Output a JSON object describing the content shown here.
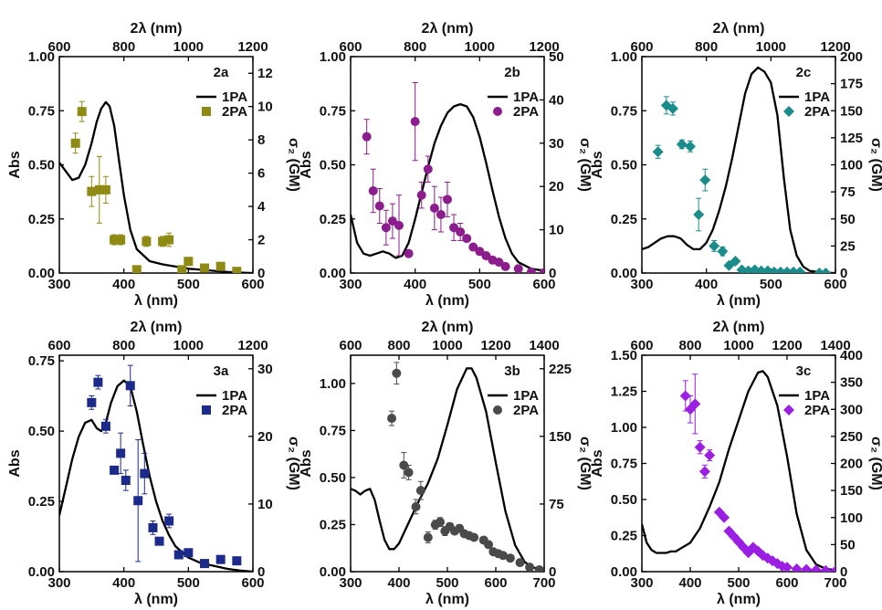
{
  "chart_data": [
    {
      "type": "line+scatter",
      "panel": "2a",
      "xlabel": "λ (nm)",
      "top_xlabel": "2λ (nm)",
      "ylabel": "Abs",
      "y2label": "σ₂ (GM)",
      "xlim": [
        300,
        600
      ],
      "ylim": [
        0,
        1.0
      ],
      "y2lim": [
        0,
        13
      ],
      "xticks": [
        300,
        400,
        500,
        600
      ],
      "top_ticks": [
        600,
        800,
        1000,
        1200
      ],
      "yticks": [
        "0.00",
        "0.25",
        "0.50",
        "0.75",
        "1.00"
      ],
      "ytick_values": [
        0,
        0.25,
        0.5,
        0.75,
        1.0
      ],
      "y2ticks": [
        0,
        2,
        4,
        6,
        8,
        10,
        12
      ],
      "legend": {
        "line": "1PA",
        "marker": "2PA",
        "position": "top-right"
      },
      "color": "#8f8a14",
      "marker": "square",
      "abs": {
        "x": [
          300,
          310,
          320,
          330,
          340,
          350,
          358,
          365,
          372,
          378,
          385,
          392,
          400,
          410,
          420,
          440,
          460,
          480,
          500,
          520,
          540,
          560,
          580,
          600
        ],
        "y": [
          0.51,
          0.47,
          0.43,
          0.44,
          0.5,
          0.6,
          0.7,
          0.76,
          0.79,
          0.77,
          0.68,
          0.53,
          0.36,
          0.2,
          0.11,
          0.055,
          0.04,
          0.03,
          0.02,
          0.015,
          0.01,
          0.005,
          0.002,
          0
        ]
      },
      "twopa": {
        "x": [
          325,
          335,
          350,
          362,
          372,
          385,
          395,
          420,
          435,
          460,
          470,
          490,
          500,
          525,
          550,
          575
        ],
        "y": [
          7.8,
          9.7,
          4.9,
          5.0,
          5.0,
          2.0,
          2.0,
          0.2,
          1.9,
          1.9,
          2.0,
          0.2,
          0.7,
          0.3,
          0.4,
          0.1
        ],
        "err": [
          0.6,
          0.6,
          0.9,
          2.0,
          0.8,
          0.3,
          0.3,
          0,
          0.3,
          0.3,
          0.4,
          0,
          0,
          0,
          0,
          0
        ]
      }
    },
    {
      "type": "line+scatter",
      "panel": "2b",
      "xlabel": "λ (nm)",
      "top_xlabel": "2λ (nm)",
      "ylabel": "Abs",
      "y2label": "σ₂ (GM)",
      "xlim": [
        300,
        600
      ],
      "ylim": [
        0,
        1.0
      ],
      "y2lim": [
        0,
        50
      ],
      "xticks": [
        300,
        400,
        500,
        600
      ],
      "top_ticks": [
        600,
        800,
        1000,
        1200
      ],
      "yticks": [
        "0.00",
        "0.25",
        "0.50",
        "0.75",
        "1.00"
      ],
      "ytick_values": [
        0,
        0.25,
        0.5,
        0.75,
        1.0
      ],
      "y2ticks": [
        0,
        10,
        20,
        30,
        40,
        50
      ],
      "legend": {
        "line": "1PA",
        "marker": "2PA",
        "position": "top-right"
      },
      "color": "#8b1d8c",
      "marker": "circle",
      "abs": {
        "x": [
          300,
          310,
          320,
          330,
          340,
          350,
          360,
          370,
          380,
          390,
          400,
          410,
          420,
          430,
          440,
          450,
          460,
          470,
          480,
          490,
          500,
          510,
          520,
          530,
          540,
          550,
          560,
          580,
          600
        ],
        "y": [
          0.27,
          0.14,
          0.09,
          0.08,
          0.09,
          0.1,
          0.09,
          0.07,
          0.08,
          0.14,
          0.25,
          0.37,
          0.49,
          0.6,
          0.68,
          0.74,
          0.77,
          0.78,
          0.77,
          0.72,
          0.63,
          0.51,
          0.38,
          0.26,
          0.16,
          0.09,
          0.05,
          0.02,
          0.01
        ]
      },
      "twopa": {
        "x": [
          325,
          335,
          345,
          355,
          365,
          375,
          390,
          400,
          410,
          420,
          430,
          440,
          450,
          460,
          470,
          480,
          490,
          500,
          510,
          520,
          530,
          540,
          560,
          580,
          600
        ],
        "y": [
          31.5,
          19.0,
          15.5,
          10.5,
          12.0,
          11.0,
          4.5,
          35.0,
          18.0,
          24.0,
          15.0,
          13.5,
          17.0,
          10.5,
          9.5,
          8.0,
          6.0,
          5.0,
          4.0,
          3.0,
          2.5,
          1.5,
          1.0,
          0.2,
          0.1
        ],
        "err": [
          4,
          5,
          4,
          4,
          4,
          7,
          0,
          9,
          3,
          3,
          5,
          4,
          4,
          3,
          2,
          0,
          0,
          0,
          0,
          0,
          0,
          0,
          0,
          0,
          0
        ]
      }
    },
    {
      "type": "line+scatter",
      "panel": "2c",
      "xlabel": "λ (nm)",
      "top_xlabel": "2λ (nm)",
      "ylabel": "Abs",
      "y2label": "σ₂ (GM)",
      "xlim": [
        300,
        600
      ],
      "ylim": [
        0,
        1.0
      ],
      "y2lim": [
        0,
        200
      ],
      "xticks": [
        300,
        400,
        500,
        600
      ],
      "top_ticks": [
        600,
        800,
        1000,
        1200
      ],
      "yticks": [
        "0.00",
        "0.25",
        "0.50",
        "0.75",
        "1.00"
      ],
      "ytick_values": [
        0,
        0.25,
        0.5,
        0.75,
        1.0
      ],
      "y2ticks": [
        0,
        25,
        50,
        75,
        100,
        125,
        150,
        175,
        200
      ],
      "legend": {
        "line": "1PA",
        "marker": "2PA",
        "position": "top-right"
      },
      "color": "#1a8c8c",
      "marker": "diamond",
      "abs": {
        "x": [
          300,
          310,
          320,
          330,
          340,
          350,
          360,
          370,
          380,
          390,
          400,
          410,
          420,
          430,
          440,
          450,
          460,
          470,
          480,
          490,
          500,
          510,
          520,
          530,
          540,
          550,
          560,
          580,
          600
        ],
        "y": [
          0.11,
          0.12,
          0.14,
          0.16,
          0.17,
          0.17,
          0.16,
          0.13,
          0.11,
          0.11,
          0.14,
          0.2,
          0.29,
          0.4,
          0.53,
          0.68,
          0.83,
          0.92,
          0.95,
          0.93,
          0.88,
          0.73,
          0.44,
          0.2,
          0.08,
          0.03,
          0.01,
          0.002,
          0
        ]
      },
      "twopa": {
        "x": [
          325,
          338,
          348,
          362,
          375,
          388,
          398,
          412,
          425,
          435,
          445,
          455,
          465,
          475,
          485,
          495,
          505,
          515,
          525,
          535,
          545,
          575,
          585
        ],
        "y": [
          112,
          155,
          152,
          119,
          117,
          54,
          86,
          25,
          20,
          7,
          11,
          3,
          2,
          3,
          2,
          2,
          1,
          1,
          1,
          1,
          1,
          0,
          0
        ],
        "err": [
          6,
          8,
          6,
          4,
          5,
          15,
          10,
          5,
          4,
          2,
          2,
          0,
          0,
          0,
          0,
          0,
          0,
          0,
          0,
          0,
          0,
          0,
          0
        ]
      }
    },
    {
      "type": "line+scatter",
      "panel": "3a",
      "xlabel": "λ (nm)",
      "top_xlabel": "2λ (nm)",
      "ylabel": "Abs",
      "y2label": "σ₂ (GM)",
      "xlim": [
        300,
        600
      ],
      "ylim": [
        0,
        0.77
      ],
      "y2lim": [
        0,
        32
      ],
      "xticks": [
        300,
        400,
        500,
        600
      ],
      "top_ticks": [
        600,
        800,
        1000,
        1200
      ],
      "yticks": [
        "0.00",
        "0.25",
        "0.50",
        "0.75"
      ],
      "ytick_values": [
        0,
        0.25,
        0.5,
        0.75
      ],
      "y2ticks": [
        0,
        10,
        20,
        30
      ],
      "legend": {
        "line": "1PA",
        "marker": "2PA",
        "position": "top-right"
      },
      "color": "#1c2a8c",
      "marker": "square",
      "abs": {
        "x": [
          300,
          310,
          320,
          330,
          340,
          350,
          358,
          365,
          372,
          380,
          390,
          400,
          410,
          420,
          430,
          440,
          450,
          460,
          470,
          480,
          490,
          500,
          520,
          540,
          560,
          580,
          600
        ],
        "y": [
          0.2,
          0.3,
          0.4,
          0.48,
          0.53,
          0.54,
          0.51,
          0.5,
          0.53,
          0.6,
          0.66,
          0.68,
          0.66,
          0.57,
          0.45,
          0.34,
          0.25,
          0.18,
          0.13,
          0.09,
          0.07,
          0.05,
          0.03,
          0.02,
          0.01,
          0.004,
          0
        ]
      },
      "twopa": {
        "x": [
          350,
          360,
          372,
          385,
          395,
          403,
          410,
          422,
          432,
          445,
          455,
          470,
          485,
          500,
          525,
          550,
          575
        ],
        "y": [
          25,
          28,
          21.5,
          15,
          17.5,
          13.5,
          27.5,
          10.5,
          14.5,
          6.5,
          4.5,
          7.5,
          2.5,
          2.8,
          1.2,
          1.8,
          1.6
        ],
        "err": [
          1.0,
          1.0,
          1.0,
          0.5,
          3.0,
          1.5,
          3.0,
          9.0,
          3.0,
          1.0,
          0.5,
          1.0,
          0.5,
          0.3,
          0.3,
          0.3,
          0.3
        ]
      }
    },
    {
      "type": "line+scatter",
      "panel": "3b",
      "xlabel": "λ (nm)",
      "top_xlabel": "2λ (nm)",
      "ylabel": "Abs",
      "y2label": "σ₂ (GM)",
      "xlim": [
        300,
        700
      ],
      "ylim": [
        0,
        1.15
      ],
      "y2lim": [
        0,
        240
      ],
      "xticks": [
        300,
        400,
        500,
        600,
        700
      ],
      "top_ticks": [
        600,
        800,
        1000,
        1200,
        1400
      ],
      "yticks": [
        "0.00",
        "0.25",
        "0.50",
        "0.75",
        "1.00"
      ],
      "ytick_values": [
        0,
        0.25,
        0.5,
        0.75,
        1.0
      ],
      "y2ticks": [
        0,
        75,
        150,
        225
      ],
      "legend": {
        "line": "1PA",
        "marker": "2PA",
        "position": "top-right"
      },
      "color": "#4a4a4a",
      "marker": "circle",
      "abs": {
        "x": [
          300,
          310,
          320,
          330,
          340,
          350,
          360,
          370,
          380,
          390,
          400,
          420,
          440,
          460,
          480,
          500,
          520,
          540,
          550,
          560,
          580,
          600,
          620,
          640,
          660,
          680,
          700
        ],
        "y": [
          0.44,
          0.43,
          0.41,
          0.43,
          0.44,
          0.38,
          0.27,
          0.17,
          0.12,
          0.12,
          0.15,
          0.26,
          0.37,
          0.47,
          0.6,
          0.78,
          0.97,
          1.08,
          1.08,
          1.03,
          0.85,
          0.58,
          0.32,
          0.14,
          0.05,
          0.02,
          0.01
        ]
      },
      "twopa": {
        "x": [
          385,
          395,
          410,
          420,
          435,
          445,
          460,
          475,
          485,
          495,
          505,
          515,
          525,
          535,
          545,
          555,
          575,
          585,
          595,
          605,
          615,
          630,
          650,
          670,
          690
        ],
        "y": [
          170,
          220,
          118,
          110,
          72,
          90,
          38,
          52,
          55,
          45,
          50,
          45,
          48,
          42,
          40,
          38,
          35,
          30,
          22,
          20,
          18,
          15,
          10,
          5,
          2
        ],
        "err": [
          8,
          12,
          14,
          8,
          8,
          10,
          6,
          5,
          5,
          5,
          4,
          0,
          4,
          0,
          0,
          0,
          0,
          0,
          0,
          0,
          0,
          0,
          0,
          0,
          0
        ]
      }
    },
    {
      "type": "line+scatter",
      "panel": "3c",
      "xlabel": "λ (nm)",
      "top_xlabel": "2λ (nm)",
      "ylabel": "Abs",
      "y2label": "σ₂ (GM)",
      "xlim": [
        300,
        700
      ],
      "ylim": [
        0,
        1.5
      ],
      "y2lim": [
        0,
        400
      ],
      "xticks": [
        300,
        400,
        500,
        600,
        700
      ],
      "top_ticks": [
        600,
        800,
        1000,
        1200,
        1400
      ],
      "yticks": [
        "0.00",
        "0.25",
        "0.50",
        "0.75",
        "1.00",
        "1.25",
        "1.50"
      ],
      "ytick_values": [
        0,
        0.25,
        0.5,
        0.75,
        1.0,
        1.25,
        1.5
      ],
      "y2ticks": [
        0,
        50,
        100,
        150,
        200,
        250,
        300,
        350,
        400
      ],
      "legend": {
        "line": "1PA",
        "marker": "2PA",
        "position": "top-right"
      },
      "color": "#9b1ee3",
      "marker": "diamond",
      "abs": {
        "x": [
          300,
          310,
          320,
          330,
          340,
          350,
          360,
          370,
          380,
          400,
          420,
          440,
          460,
          480,
          500,
          520,
          540,
          550,
          560,
          580,
          600,
          620,
          640,
          660,
          680,
          700
        ],
        "y": [
          0.33,
          0.2,
          0.15,
          0.13,
          0.13,
          0.13,
          0.14,
          0.14,
          0.16,
          0.2,
          0.3,
          0.45,
          0.62,
          0.85,
          1.05,
          1.25,
          1.38,
          1.39,
          1.35,
          1.15,
          0.8,
          0.4,
          0.15,
          0.05,
          0.02,
          0.01
        ]
      },
      "twopa": {
        "x": [
          390,
          400,
          410,
          420,
          430,
          440,
          460,
          470,
          480,
          490,
          500,
          510,
          520,
          530,
          540,
          550,
          560,
          570,
          580,
          590,
          600,
          620,
          640,
          660,
          680,
          700
        ],
        "y": [
          325,
          300,
          310,
          230,
          185,
          215,
          110,
          100,
          75,
          65,
          55,
          45,
          35,
          45,
          38,
          30,
          25,
          20,
          15,
          10,
          8,
          5,
          4,
          3,
          2,
          1
        ],
        "err": [
          28,
          25,
          55,
          12,
          12,
          10,
          0,
          0,
          0,
          0,
          0,
          0,
          0,
          0,
          0,
          0,
          0,
          0,
          0,
          0,
          0,
          0,
          0,
          0,
          0,
          0
        ]
      }
    }
  ]
}
